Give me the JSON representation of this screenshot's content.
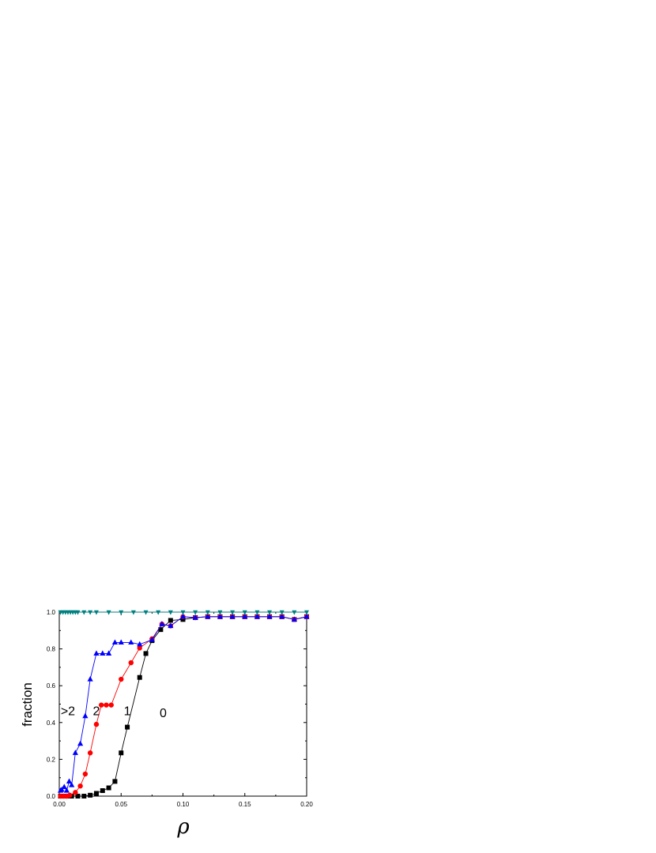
{
  "chart_data": {
    "type": "line",
    "title": "",
    "xlabel": "ρ",
    "ylabel": "fraction",
    "xlim": [
      0.0,
      0.2
    ],
    "ylim": [
      0.0,
      1.0
    ],
    "xticks": [
      "0.00",
      "0.05",
      "0.10",
      "0.15",
      "0.20"
    ],
    "yticks": [
      "0.0",
      "0.2",
      "0.4",
      "0.6",
      "0.8",
      "1.0"
    ],
    "grid": false,
    "legend": "none",
    "annotations": [
      {
        "text": ">2",
        "x": 0.007,
        "y": 0.44
      },
      {
        "text": "2",
        "x": 0.03,
        "y": 0.44
      },
      {
        "text": "1",
        "x": 0.055,
        "y": 0.44
      },
      {
        "text": "0",
        "x": 0.084,
        "y": 0.43
      }
    ],
    "series": [
      {
        "label_key": "0",
        "color": "#000000",
        "marker": "square",
        "x": [
          0.001,
          0.0035,
          0.006,
          0.01,
          0.015,
          0.02,
          0.025,
          0.03,
          0.035,
          0.04,
          0.045,
          0.05,
          0.055,
          0.065,
          0.07,
          0.075,
          0.082,
          0.09,
          0.1,
          0.11,
          0.12,
          0.13,
          0.14,
          0.15,
          0.16,
          0.17,
          0.18,
          0.19,
          0.2
        ],
        "y": [
          0.0,
          0.0,
          0.0,
          0.0,
          0.0,
          0.0,
          0.005,
          0.015,
          0.03,
          0.045,
          0.08,
          0.235,
          0.375,
          0.645,
          0.775,
          0.845,
          0.905,
          0.955,
          0.96,
          0.97,
          0.975,
          0.975,
          0.975,
          0.975,
          0.975,
          0.975,
          0.975,
          0.96,
          0.975
        ]
      },
      {
        "label_key": "1",
        "color": "#ff0000",
        "marker": "circle",
        "x": [
          0.001,
          0.0035,
          0.006,
          0.0085,
          0.013,
          0.017,
          0.021,
          0.025,
          0.03,
          0.034,
          0.038,
          0.042,
          0.05,
          0.058,
          0.065,
          0.075,
          0.083,
          0.09,
          0.1,
          0.11,
          0.12,
          0.13,
          0.14,
          0.15,
          0.16,
          0.17,
          0.18,
          0.19,
          0.2
        ],
        "y": [
          0.0,
          0.0,
          0.0,
          0.005,
          0.02,
          0.055,
          0.12,
          0.235,
          0.39,
          0.495,
          0.495,
          0.495,
          0.635,
          0.725,
          0.805,
          0.855,
          0.935,
          0.925,
          0.975,
          0.97,
          0.975,
          0.975,
          0.975,
          0.975,
          0.975,
          0.975,
          0.975,
          0.96,
          0.975
        ]
      },
      {
        "label_key": ">2",
        "color": "#0000ff",
        "marker": "triangle-up",
        "x": [
          0.001,
          0.002,
          0.004,
          0.006,
          0.008,
          0.01,
          0.013,
          0.017,
          0.021,
          0.025,
          0.03,
          0.035,
          0.04,
          0.045,
          0.05,
          0.058,
          0.065,
          0.075,
          0.083,
          0.09,
          0.1,
          0.11,
          0.12,
          0.13,
          0.14,
          0.15,
          0.16,
          0.17,
          0.18,
          0.19,
          0.2
        ],
        "y": [
          0.03,
          0.035,
          0.05,
          0.03,
          0.08,
          0.06,
          0.235,
          0.285,
          0.435,
          0.635,
          0.775,
          0.775,
          0.775,
          0.835,
          0.835,
          0.835,
          0.825,
          0.85,
          0.935,
          0.925,
          0.975,
          0.97,
          0.975,
          0.975,
          0.975,
          0.975,
          0.975,
          0.975,
          0.975,
          0.96,
          0.975
        ]
      },
      {
        "label_key": "top",
        "color": "#008080",
        "marker": "triangle-down",
        "x": [
          0.001,
          0.003,
          0.005,
          0.007,
          0.009,
          0.011,
          0.013,
          0.015,
          0.02,
          0.025,
          0.03,
          0.04,
          0.05,
          0.06,
          0.07,
          0.08,
          0.09,
          0.1,
          0.11,
          0.12,
          0.13,
          0.14,
          0.15,
          0.16,
          0.17,
          0.18,
          0.19,
          0.2
        ],
        "y": [
          1.0,
          1.0,
          1.0,
          1.0,
          1.0,
          1.0,
          1.0,
          1.0,
          1.0,
          1.0,
          1.0,
          1.0,
          1.0,
          1.0,
          1.0,
          1.0,
          1.0,
          1.0,
          1.0,
          1.0,
          1.0,
          1.0,
          1.0,
          1.0,
          1.0,
          1.0,
          1.0,
          1.0
        ]
      }
    ]
  }
}
